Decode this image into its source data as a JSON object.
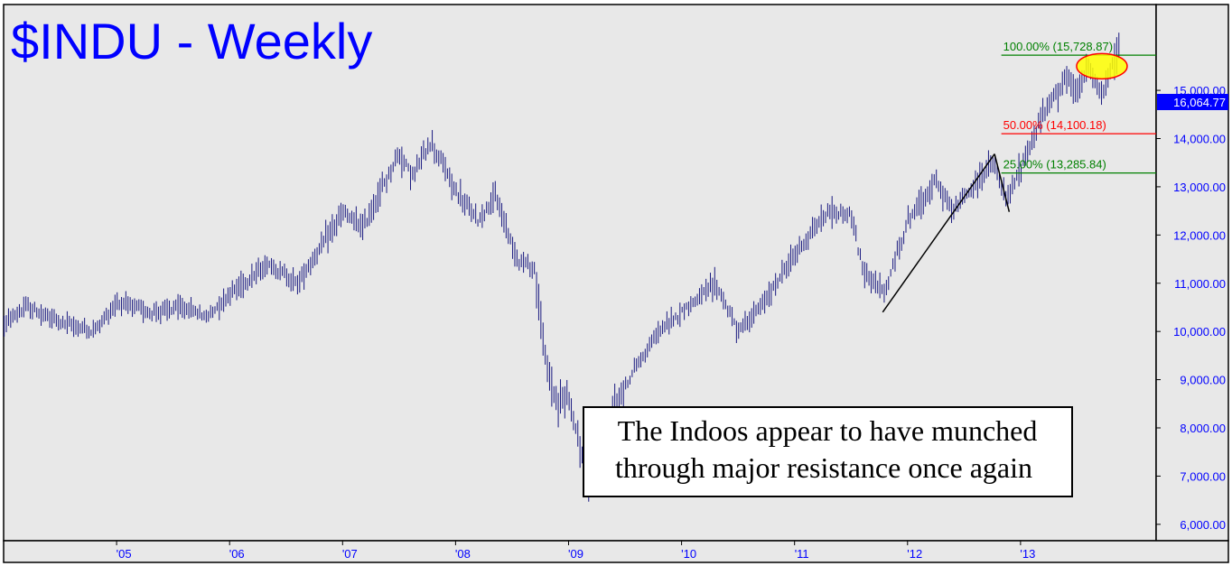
{
  "chart_data": {
    "type": "bar",
    "subtype": "ohlc-weekly",
    "title": "$INDU - Weekly",
    "y_axis": {
      "side": "right",
      "ticks": [
        "6,000.00",
        "7,000.00",
        "8,000.00",
        "9,000.00",
        "10,000.00",
        "11,000.00",
        "12,000.00",
        "13,000.00",
        "14,000.00",
        "15,000.00"
      ],
      "tick_values": [
        6000,
        7000,
        8000,
        9000,
        10000,
        11000,
        12000,
        13000,
        14000,
        15000
      ],
      "ylim": [
        5660,
        16780
      ]
    },
    "x_axis": {
      "ticks": [
        "'05",
        "'06",
        "'07",
        "'08",
        "'09",
        "'10",
        "'11",
        "'12",
        "'13"
      ],
      "tick_dates": [
        2005.0,
        2006.0,
        2007.0,
        2008.0,
        2009.0,
        2010.0,
        2011.0,
        2012.0,
        2013.0
      ],
      "xlim": [
        2004.0,
        2014.2
      ]
    },
    "last_price": {
      "label": "16,064.77",
      "value": 16064.77,
      "color": "#0000ff"
    },
    "price_anchors": [
      {
        "x": 2004.0,
        "y": 10150
      },
      {
        "x": 2004.2,
        "y": 10500
      },
      {
        "x": 2004.5,
        "y": 10200
      },
      {
        "x": 2004.8,
        "y": 10000
      },
      {
        "x": 2005.0,
        "y": 10600
      },
      {
        "x": 2005.3,
        "y": 10400
      },
      {
        "x": 2005.6,
        "y": 10500
      },
      {
        "x": 2005.8,
        "y": 10300
      },
      {
        "x": 2006.0,
        "y": 10800
      },
      {
        "x": 2006.35,
        "y": 11400
      },
      {
        "x": 2006.6,
        "y": 11000
      },
      {
        "x": 2007.0,
        "y": 12450
      },
      {
        "x": 2007.18,
        "y": 12150
      },
      {
        "x": 2007.5,
        "y": 13700
      },
      {
        "x": 2007.62,
        "y": 13200
      },
      {
        "x": 2007.78,
        "y": 13950
      },
      {
        "x": 2007.92,
        "y": 13300
      },
      {
        "x": 2008.0,
        "y": 12900
      },
      {
        "x": 2008.2,
        "y": 12300
      },
      {
        "x": 2008.35,
        "y": 12800
      },
      {
        "x": 2008.55,
        "y": 11500
      },
      {
        "x": 2008.7,
        "y": 11300
      },
      {
        "x": 2008.8,
        "y": 9300
      },
      {
        "x": 2008.9,
        "y": 8500
      },
      {
        "x": 2009.0,
        "y": 8700
      },
      {
        "x": 2009.18,
        "y": 6700
      },
      {
        "x": 2009.4,
        "y": 8400
      },
      {
        "x": 2009.6,
        "y": 9300
      },
      {
        "x": 2009.8,
        "y": 10000
      },
      {
        "x": 2010.0,
        "y": 10400
      },
      {
        "x": 2010.3,
        "y": 11000
      },
      {
        "x": 2010.5,
        "y": 10000
      },
      {
        "x": 2010.7,
        "y": 10500
      },
      {
        "x": 2011.0,
        "y": 11600
      },
      {
        "x": 2011.3,
        "y": 12500
      },
      {
        "x": 2011.5,
        "y": 12400
      },
      {
        "x": 2011.6,
        "y": 11300
      },
      {
        "x": 2011.8,
        "y": 10800
      },
      {
        "x": 2012.0,
        "y": 12300
      },
      {
        "x": 2012.25,
        "y": 13100
      },
      {
        "x": 2012.4,
        "y": 12500
      },
      {
        "x": 2012.75,
        "y": 13500
      },
      {
        "x": 2012.88,
        "y": 12700
      },
      {
        "x": 2013.0,
        "y": 13400
      },
      {
        "x": 2013.2,
        "y": 14500
      },
      {
        "x": 2013.4,
        "y": 15300
      },
      {
        "x": 2013.5,
        "y": 14900
      },
      {
        "x": 2013.6,
        "y": 15550
      },
      {
        "x": 2013.72,
        "y": 14850
      },
      {
        "x": 2013.8,
        "y": 15400
      },
      {
        "x": 2013.88,
        "y": 16000
      }
    ],
    "fib_lines": [
      {
        "label": "100.00% (15,728.87)",
        "value": 15728.87,
        "color": "#008000",
        "x_start": 2012.83
      },
      {
        "label": "50.00% (14,100.18)",
        "value": 14100.18,
        "color": "#ff0000",
        "x_start": 2012.83
      },
      {
        "label": "25.00% (13,285.84)",
        "value": 13285.84,
        "color": "#008000",
        "x_start": 2012.83
      }
    ],
    "pattern_lines": [
      {
        "from": {
          "x": 2011.78,
          "y": 10400
        },
        "to": {
          "x": 2012.77,
          "y": 13680
        }
      },
      {
        "from": {
          "x": 2012.77,
          "y": 13680
        },
        "to": {
          "x": 2012.9,
          "y": 12480
        }
      }
    ],
    "highlight_ellipse": {
      "cx": 2013.72,
      "cy": 15500,
      "fill": "#ffff00",
      "stroke": "#ff0000"
    },
    "annotation": {
      "lines": [
        "The Indoos appear to have munched",
        "through major resistance once again"
      ]
    },
    "colors": {
      "background": "#e8e8e8",
      "bars": "#1a1a80",
      "axis_text": "#0000ff",
      "title": "#0000ff"
    }
  }
}
